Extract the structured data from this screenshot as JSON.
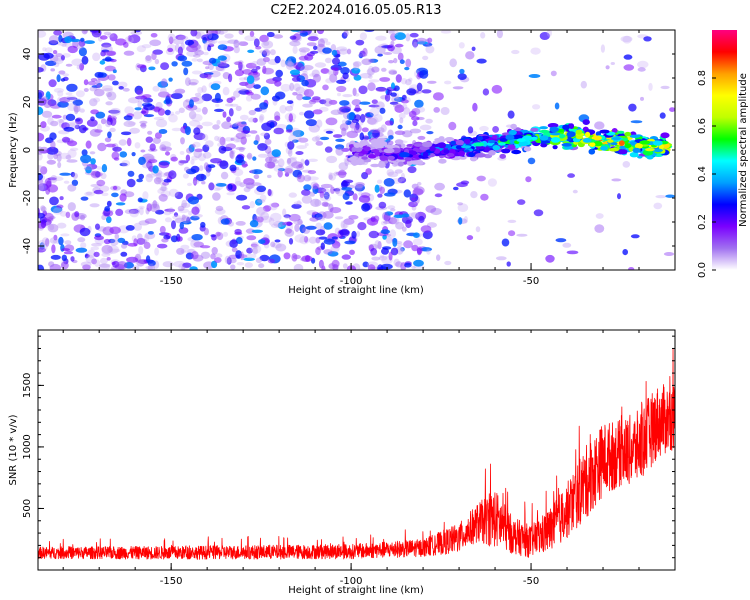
{
  "chart_data": [
    {
      "type": "heatmap",
      "title": "C2E2.2024.016.05.05.R13",
      "xlabel": "Height of straight line (km)",
      "ylabel": "Frequency (Hz)",
      "xlim": [
        -187,
        -10
      ],
      "ylim": [
        -50,
        50
      ],
      "x_ticks": [
        -150,
        -100,
        -50
      ],
      "y_ticks": [
        40,
        20,
        0,
        -20,
        -40
      ],
      "colorbar": {
        "label": "Normalized spectral amplitude",
        "range": [
          0,
          1
        ],
        "ticks": [
          "0.0",
          "0.2",
          "0.4",
          "0.6",
          "0.8"
        ],
        "colors": [
          "#ffffff",
          "#a070f0",
          "#7a00ff",
          "#0000ff",
          "#00a0ff",
          "#00ffff",
          "#00ff00",
          "#c0ff00",
          "#ffff00",
          "#ffa000",
          "#ff0000",
          "#ff0080"
        ]
      },
      "signal_track": {
        "x": [
          -100,
          -90,
          -80,
          -70,
          -60,
          -50,
          -40,
          -30,
          -20,
          -12
        ],
        "freq": [
          0,
          -2,
          -1,
          1,
          3,
          5,
          6,
          4,
          2,
          1
        ],
        "amplitude": [
          0.25,
          0.3,
          0.35,
          0.45,
          0.55,
          0.6,
          0.8,
          0.85,
          0.8,
          0.8
        ]
      },
      "grid": false
    },
    {
      "type": "line",
      "xlabel": "Height of straight line (km)",
      "ylabel": "SNR (10 * v/v)",
      "xlim": [
        -187,
        -10
      ],
      "ylim": [
        0,
        1950
      ],
      "x_ticks": [
        -150,
        -100,
        -50
      ],
      "y_ticks": [
        500,
        1000,
        1500
      ],
      "series_color": "#ff0000",
      "envelope": {
        "x": [
          -187,
          -150,
          -100,
          -80,
          -70,
          -65,
          -60,
          -55,
          -50,
          -45,
          -40,
          -35,
          -30,
          -25,
          -20,
          -15,
          -10
        ],
        "mean": [
          140,
          140,
          150,
          180,
          260,
          380,
          420,
          280,
          230,
          320,
          480,
          700,
          900,
          950,
          1000,
          1200,
          1250
        ],
        "spread": [
          80,
          90,
          100,
          120,
          200,
          260,
          400,
          250,
          220,
          300,
          380,
          500,
          500,
          450,
          500,
          500,
          450
        ]
      },
      "grid": false
    }
  ]
}
